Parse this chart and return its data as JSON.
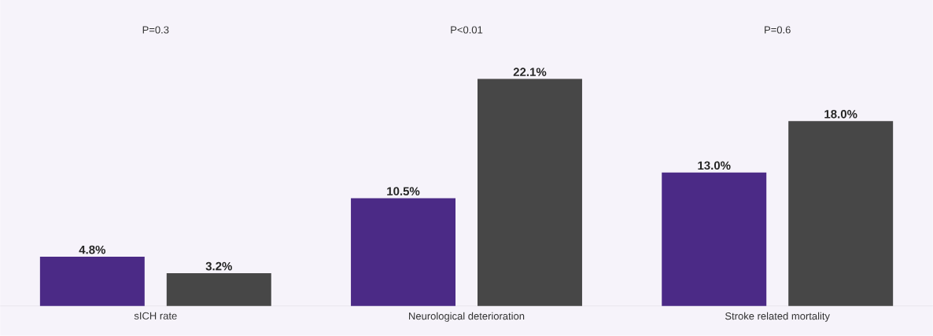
{
  "chart_data": {
    "type": "bar",
    "categories": [
      "sICH rate",
      "Neurological  deterioration",
      "Stroke related mortality"
    ],
    "series": [
      {
        "color": "#4b2a86",
        "values": [
          4.8,
          10.5,
          13.0
        ],
        "value_labels": [
          "4.8%",
          "10.5%",
          "13.0%"
        ]
      },
      {
        "color": "#474747",
        "values": [
          3.2,
          22.1,
          18.0
        ],
        "value_labels": [
          "3.2%",
          "22.1%",
          "18.0%"
        ]
      }
    ],
    "annotations": [
      "P=0.3",
      "P<0.01",
      "P=0.6"
    ],
    "tick_labels": "x"
  }
}
